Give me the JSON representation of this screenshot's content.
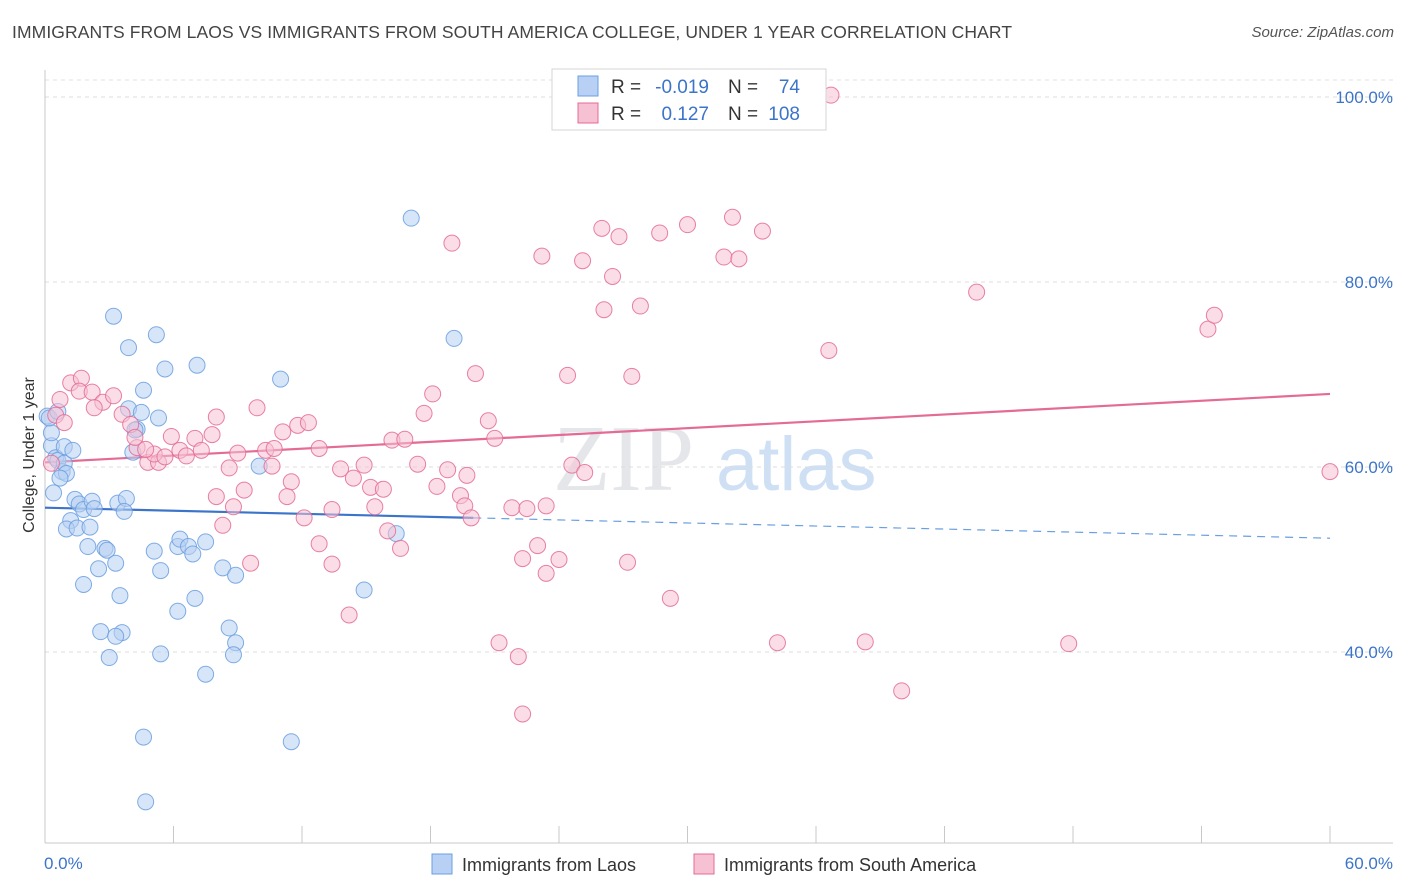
{
  "title": "IMMIGRANTS FROM LAOS VS IMMIGRANTS FROM SOUTH AMERICA COLLEGE, UNDER 1 YEAR CORRELATION CHART",
  "source": "Source: ZipAtlas.com",
  "watermark": {
    "zip": "ZIP",
    "atlas": "atlas"
  },
  "colors": {
    "blue": "#6a9fe0",
    "blue_fill": "#b7d0f3",
    "pink": "#e46b95",
    "pink_fill": "#f6c1d3",
    "axis_text": "#3b74c9"
  },
  "legend": {
    "r_label": "R =",
    "n_label": "N =",
    "rows": [
      {
        "r": "-0.019",
        "n": "74"
      },
      {
        "r": "0.127",
        "n": "108"
      }
    ]
  },
  "chart_data": {
    "type": "scatter",
    "title": "IMMIGRANTS FROM LAOS VS IMMIGRANTS FROM SOUTH AMERICA COLLEGE, UNDER 1 YEAR CORRELATION CHART",
    "xlabel": "",
    "ylabel": "College, Under 1 year",
    "xlim": [
      0,
      60
    ],
    "ylim": [
      20,
      103
    ],
    "x_tick_labels": [
      "0.0%",
      "60.0%"
    ],
    "y_ticks": [
      40,
      60,
      80,
      100
    ],
    "y_tick_labels": [
      "40.0%",
      "60.0%",
      "80.0%",
      "100.0%"
    ],
    "grid": true,
    "legend_position": "top-center",
    "series": [
      {
        "name": "Immigrants from Laos",
        "color": "#6a9fe0",
        "r": -0.019,
        "n": 74,
        "trend": {
          "x0": 0,
          "y0": 55.6,
          "x1": 60,
          "y1": 52.3,
          "solid_until": 20
        },
        "points": [
          [
            0.1,
            65.5
          ],
          [
            0.3,
            62.3
          ],
          [
            0.5,
            61.0
          ],
          [
            0.6,
            60.7
          ],
          [
            0.8,
            59.5
          ],
          [
            0.9,
            60.4
          ],
          [
            1.0,
            59.3
          ],
          [
            0.7,
            58.8
          ],
          [
            0.4,
            57.2
          ],
          [
            1.4,
            56.5
          ],
          [
            1.6,
            56.0
          ],
          [
            1.8,
            55.4
          ],
          [
            2.2,
            56.3
          ],
          [
            2.3,
            55.5
          ],
          [
            1.2,
            54.2
          ],
          [
            1.0,
            53.3
          ],
          [
            1.5,
            53.4
          ],
          [
            2.1,
            53.5
          ],
          [
            2.0,
            51.4
          ],
          [
            2.8,
            51.2
          ],
          [
            2.9,
            51.0
          ],
          [
            3.3,
            49.6
          ],
          [
            2.5,
            49.0
          ],
          [
            1.8,
            47.3
          ],
          [
            3.5,
            46.1
          ],
          [
            2.6,
            42.2
          ],
          [
            3.6,
            42.1
          ],
          [
            3.3,
            41.7
          ],
          [
            3.0,
            39.4
          ],
          [
            4.6,
            30.8
          ],
          [
            4.7,
            23.8
          ],
          [
            3.2,
            76.3
          ],
          [
            3.9,
            72.9
          ],
          [
            5.2,
            74.3
          ],
          [
            7.1,
            71.0
          ],
          [
            5.6,
            70.6
          ],
          [
            4.6,
            68.3
          ],
          [
            3.9,
            66.3
          ],
          [
            4.5,
            65.9
          ],
          [
            5.3,
            65.3
          ],
          [
            4.3,
            64.1
          ],
          [
            4.1,
            61.6
          ],
          [
            4.2,
            64.0
          ],
          [
            10.0,
            60.1
          ],
          [
            11.0,
            69.5
          ],
          [
            3.4,
            56.1
          ],
          [
            3.8,
            56.6
          ],
          [
            3.7,
            55.2
          ],
          [
            5.1,
            50.9
          ],
          [
            5.4,
            48.8
          ],
          [
            6.2,
            51.4
          ],
          [
            6.3,
            52.2
          ],
          [
            6.7,
            51.4
          ],
          [
            6.9,
            50.6
          ],
          [
            7.5,
            51.9
          ],
          [
            8.3,
            49.1
          ],
          [
            8.9,
            48.3
          ],
          [
            7.0,
            45.8
          ],
          [
            6.2,
            44.4
          ],
          [
            8.6,
            42.6
          ],
          [
            8.9,
            41.0
          ],
          [
            8.8,
            39.7
          ],
          [
            7.5,
            37.6
          ],
          [
            5.4,
            39.8
          ],
          [
            11.5,
            30.3
          ],
          [
            14.9,
            46.7
          ],
          [
            16.4,
            52.8
          ],
          [
            17.1,
            86.9
          ],
          [
            19.1,
            73.9
          ],
          [
            0.3,
            63.7
          ],
          [
            0.9,
            62.2
          ],
          [
            0.2,
            65.3
          ],
          [
            1.3,
            61.8
          ],
          [
            0.6,
            66.0
          ]
        ]
      },
      {
        "name": "Immigrants from South America",
        "color": "#e46b95",
        "r": 0.127,
        "n": 108,
        "trend": {
          "x0": 0,
          "y0": 60.5,
          "x1": 60,
          "y1": 67.9
        },
        "points": [
          [
            0.3,
            60.4
          ],
          [
            0.5,
            65.6
          ],
          [
            0.7,
            67.3
          ],
          [
            1.2,
            69.1
          ],
          [
            1.7,
            69.6
          ],
          [
            1.6,
            68.2
          ],
          [
            2.2,
            68.1
          ],
          [
            2.7,
            67.0
          ],
          [
            3.2,
            67.7
          ],
          [
            3.6,
            65.7
          ],
          [
            4.0,
            64.6
          ],
          [
            4.3,
            62.1
          ],
          [
            4.2,
            63.2
          ],
          [
            4.8,
            60.5
          ],
          [
            5.3,
            60.5
          ],
          [
            5.1,
            61.4
          ],
          [
            5.6,
            61.1
          ],
          [
            5.9,
            63.3
          ],
          [
            6.3,
            61.8
          ],
          [
            6.6,
            61.2
          ],
          [
            7.0,
            63.1
          ],
          [
            7.3,
            61.8
          ],
          [
            7.8,
            63.5
          ],
          [
            8.0,
            65.4
          ],
          [
            8.6,
            59.9
          ],
          [
            9.0,
            61.5
          ],
          [
            9.3,
            57.5
          ],
          [
            8.0,
            56.8
          ],
          [
            8.8,
            55.7
          ],
          [
            8.3,
            53.7
          ],
          [
            9.6,
            49.6
          ],
          [
            9.9,
            66.4
          ],
          [
            10.3,
            61.8
          ],
          [
            10.6,
            60.1
          ],
          [
            11.1,
            63.8
          ],
          [
            11.5,
            58.4
          ],
          [
            11.3,
            56.8
          ],
          [
            11.8,
            64.5
          ],
          [
            12.3,
            64.8
          ],
          [
            12.8,
            62.0
          ],
          [
            12.1,
            54.5
          ],
          [
            12.8,
            51.7
          ],
          [
            13.4,
            49.5
          ],
          [
            13.8,
            59.8
          ],
          [
            14.4,
            58.8
          ],
          [
            14.9,
            60.2
          ],
          [
            15.4,
            55.7
          ],
          [
            15.2,
            57.8
          ],
          [
            15.8,
            57.6
          ],
          [
            16.2,
            62.9
          ],
          [
            16.8,
            63.0
          ],
          [
            16.0,
            53.1
          ],
          [
            17.4,
            60.3
          ],
          [
            17.7,
            65.8
          ],
          [
            18.1,
            67.9
          ],
          [
            18.3,
            57.9
          ],
          [
            18.8,
            59.7
          ],
          [
            19.4,
            56.9
          ],
          [
            19.6,
            55.8
          ],
          [
            19.9,
            54.5
          ],
          [
            19.0,
            84.2
          ],
          [
            20.1,
            70.1
          ],
          [
            20.7,
            65.0
          ],
          [
            21.0,
            63.1
          ],
          [
            21.8,
            55.6
          ],
          [
            22.5,
            55.5
          ],
          [
            23.4,
            55.8
          ],
          [
            22.3,
            50.1
          ],
          [
            23.0,
            51.5
          ],
          [
            23.4,
            48.5
          ],
          [
            24.0,
            50.0
          ],
          [
            23.2,
            82.8
          ],
          [
            24.6,
            60.2
          ],
          [
            25.2,
            59.4
          ],
          [
            24.4,
            69.9
          ],
          [
            25.1,
            82.3
          ],
          [
            26.0,
            85.8
          ],
          [
            26.8,
            84.9
          ],
          [
            26.5,
            80.6
          ],
          [
            26.1,
            77.0
          ],
          [
            27.4,
            69.8
          ],
          [
            27.8,
            77.4
          ],
          [
            28.7,
            85.3
          ],
          [
            29.2,
            45.8
          ],
          [
            30.0,
            86.2
          ],
          [
            31.7,
            82.7
          ],
          [
            32.1,
            87.0
          ],
          [
            32.4,
            82.5
          ],
          [
            33.5,
            85.5
          ],
          [
            34.2,
            41.0
          ],
          [
            36.6,
            72.6
          ],
          [
            38.3,
            41.1
          ],
          [
            40.0,
            35.8
          ],
          [
            43.5,
            78.9
          ],
          [
            47.8,
            40.9
          ],
          [
            54.3,
            74.9
          ],
          [
            54.6,
            76.4
          ],
          [
            60.0,
            59.5
          ],
          [
            36.7,
            100.2
          ],
          [
            21.2,
            41.0
          ],
          [
            22.1,
            39.5
          ],
          [
            22.3,
            33.3
          ],
          [
            14.2,
            44.0
          ],
          [
            16.6,
            51.2
          ],
          [
            13.4,
            55.4
          ],
          [
            10.7,
            62.0
          ],
          [
            4.7,
            61.9
          ],
          [
            2.3,
            66.4
          ],
          [
            0.9,
            64.8
          ],
          [
            27.2,
            49.7
          ],
          [
            19.7,
            59.1
          ]
        ]
      }
    ]
  },
  "bottom_legend": [
    "Immigrants from Laos",
    "Immigrants from South America"
  ]
}
